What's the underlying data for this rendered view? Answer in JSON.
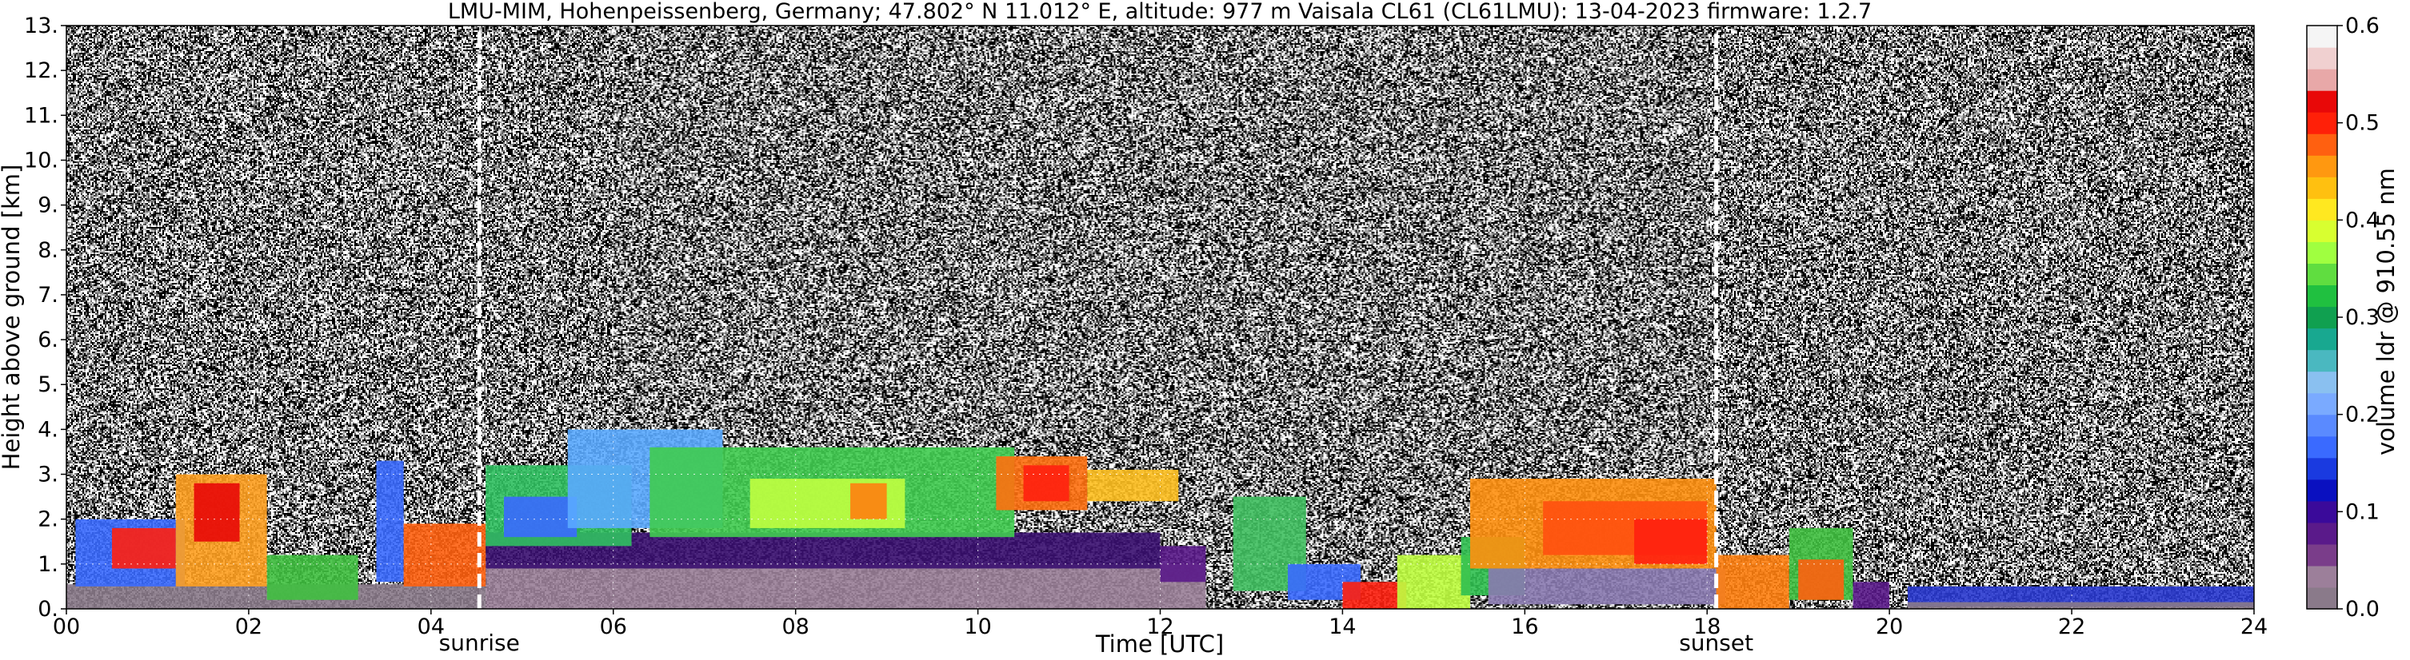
{
  "chart_data": {
    "type": "heatmap",
    "title": "LMU-MIM, Hohenpeissenberg, Germany; 47.802° N 11.012° E, altitude: 977 m    Vaisala CL61 (CL61LMU): 13-04-2023    firmware: 1.2.7",
    "xlabel": "Time [UTC]",
    "ylabel": "Height above ground [km]",
    "xlim": [
      0,
      24
    ],
    "ylim": [
      0,
      13
    ],
    "x_ticks": [
      "00",
      "02",
      "04",
      "06",
      "08",
      "10",
      "12",
      "14",
      "16",
      "18",
      "20",
      "22",
      "24"
    ],
    "y_ticks": [
      "0.",
      "1.",
      "2.",
      "3.",
      "4.",
      "5.",
      "6.",
      "7.",
      "8.",
      "9.",
      "10.",
      "11.",
      "12.",
      "13."
    ],
    "grid": true,
    "colorbar": {
      "label": "volume ldr @ 910.55 nm",
      "range": [
        0.0,
        0.6
      ],
      "ticks": [
        "0.0",
        "0.1",
        "0.2",
        "0.3",
        "0.4",
        "0.5",
        "0.6"
      ],
      "colors": [
        "#8a7a8a",
        "#9c7f9a",
        "#7a3d8a",
        "#5a1a8a",
        "#3a0a9a",
        "#0a10c0",
        "#1a3ae0",
        "#3a6aff",
        "#5a8aff",
        "#7aaaff",
        "#8ac0f0",
        "#4ab8c0",
        "#18a890",
        "#10a050",
        "#20c040",
        "#60dd40",
        "#a0ff40",
        "#d8ff30",
        "#ffe820",
        "#ffc010",
        "#ff9810",
        "#ff6010",
        "#ff2008",
        "#e80808",
        "#e8a8a8",
        "#f0d0d0",
        "#f5f5f5"
      ]
    },
    "annotations": [
      {
        "text": "sunrise",
        "x": 4.53
      },
      {
        "text": "sunset",
        "x": 18.1
      }
    ]
  }
}
